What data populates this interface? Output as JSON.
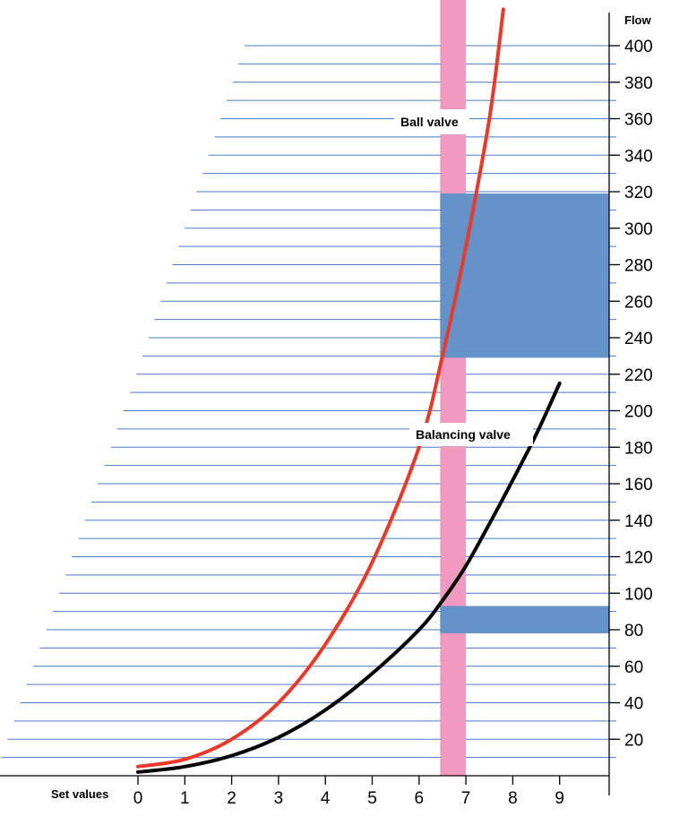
{
  "chart_data": {
    "type": "line",
    "title": "",
    "xlabel": "Set values",
    "ylabel": "Flow",
    "xlim": [
      0,
      10
    ],
    "ylim": [
      0,
      410
    ],
    "x_ticks": [
      0,
      1,
      2,
      3,
      4,
      5,
      6,
      7,
      8,
      9
    ],
    "y_ticks": [
      20,
      40,
      60,
      80,
      100,
      120,
      140,
      160,
      180,
      200,
      220,
      240,
      260,
      280,
      300,
      320,
      340,
      360,
      380,
      400
    ],
    "grid": "horizontal",
    "series": [
      {
        "name": "Ball valve",
        "color": "#e8392a",
        "x": [
          0,
          1,
          2,
          3,
          4,
          5,
          6,
          6.5,
          7,
          7.5,
          7.8
        ],
        "y": [
          5,
          9,
          20,
          40,
          72,
          117,
          180,
          230,
          290,
          360,
          420
        ]
      },
      {
        "name": "Balancing valve",
        "color": "#000000",
        "x": [
          0,
          1,
          2,
          3,
          4,
          5,
          6,
          6.5,
          7,
          7.5,
          8,
          8.5,
          9
        ],
        "y": [
          2,
          5,
          11,
          21,
          36,
          56,
          80,
          96,
          115,
          138,
          162,
          187,
          215
        ]
      }
    ],
    "annotations": {
      "set_value_band": {
        "x_from": 6.45,
        "x_to": 7.0,
        "color": "#f09ac0"
      },
      "ball_valve_flow_range": {
        "y_from": 229,
        "y_to": 319,
        "color": "#6592c8"
      },
      "balancing_valve_flow_range": {
        "y_from": 78,
        "y_to": 93,
        "color": "#6592c8"
      }
    }
  }
}
